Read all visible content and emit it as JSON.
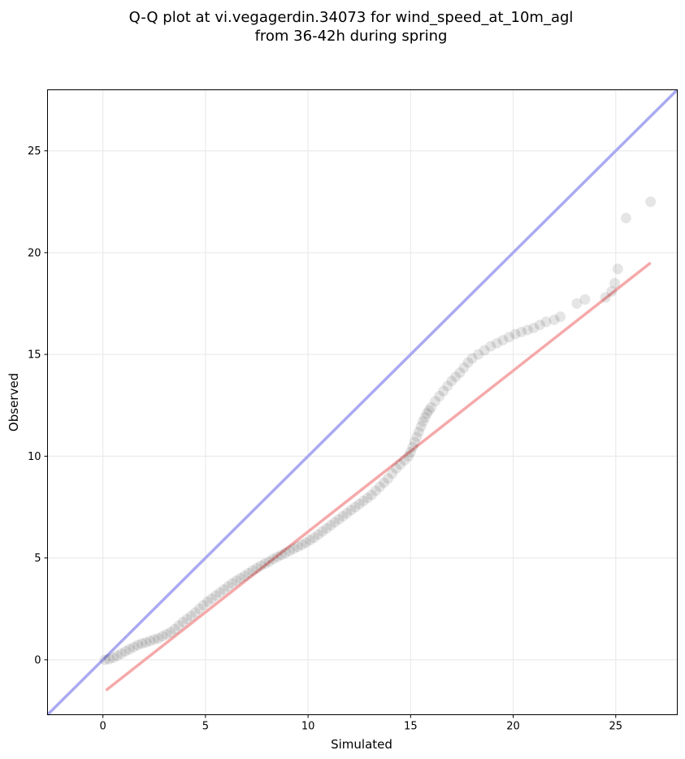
{
  "chart_data": {
    "type": "scatter",
    "title_lines": [
      "Q-Q plot at vi.vegagerdin.34073 for wind_speed_at_10m_agl",
      "from 36-42h during spring"
    ],
    "xlabel": "Simulated",
    "ylabel": "Observed",
    "xlim": [
      -2.7,
      28.0
    ],
    "ylim": [
      -2.7,
      28.0
    ],
    "x_ticks": [
      0,
      5,
      10,
      15,
      20,
      25
    ],
    "y_ticks": [
      0,
      5,
      10,
      15,
      20,
      25
    ],
    "x_tick_labels": [
      "0",
      "5",
      "10",
      "15",
      "20",
      "25"
    ],
    "y_tick_labels": [
      "0",
      "5",
      "10",
      "15",
      "20",
      "25"
    ],
    "grid": true,
    "colors": {
      "points": "#000000",
      "identity_line": "#aaaaf2",
      "fit_line": "#f5a9a9",
      "grid": "#ebebeb"
    },
    "identity_line": {
      "name": "y = x"
    },
    "fit_line": {
      "x": [
        0.15,
        26.7
      ],
      "y": [
        -1.5,
        19.5
      ]
    },
    "points": {
      "x": [
        0.1,
        0.3,
        0.5,
        0.7,
        0.9,
        1.1,
        1.3,
        1.5,
        1.7,
        1.9,
        2.1,
        2.3,
        2.5,
        2.7,
        2.9,
        3.1,
        3.3,
        3.5,
        3.7,
        3.9,
        4.1,
        4.3,
        4.5,
        4.7,
        4.9,
        5.1,
        5.3,
        5.5,
        5.7,
        5.9,
        6.1,
        6.3,
        6.5,
        6.7,
        6.9,
        7.1,
        7.3,
        7.5,
        7.7,
        7.9,
        8.1,
        8.3,
        8.5,
        8.7,
        8.9,
        9.1,
        9.3,
        9.5,
        9.7,
        9.9,
        10.1,
        10.3,
        10.5,
        10.7,
        10.9,
        11.1,
        11.3,
        11.5,
        11.7,
        11.9,
        12.1,
        12.3,
        12.5,
        12.7,
        12.9,
        13.1,
        13.3,
        13.5,
        13.7,
        13.9,
        14.1,
        14.3,
        14.5,
        14.7,
        14.9,
        15.0,
        15.1,
        15.2,
        15.3,
        15.4,
        15.5,
        15.6,
        15.7,
        15.8,
        15.9,
        16.0,
        16.2,
        16.4,
        16.6,
        16.8,
        17.0,
        17.2,
        17.4,
        17.6,
        17.8,
        18.0,
        18.3,
        18.6,
        18.9,
        19.2,
        19.5,
        19.8,
        20.1,
        20.4,
        20.7,
        21.0,
        21.3,
        21.6,
        22.0,
        22.3,
        23.1,
        23.5,
        24.5,
        24.8,
        24.95,
        25.1,
        25.5,
        26.7
      ],
      "y": [
        0.0,
        0.03,
        0.1,
        0.2,
        0.3,
        0.42,
        0.52,
        0.62,
        0.72,
        0.8,
        0.85,
        0.92,
        1.0,
        1.05,
        1.15,
        1.25,
        1.35,
        1.5,
        1.68,
        1.85,
        2.0,
        2.15,
        2.32,
        2.5,
        2.68,
        2.85,
        3.0,
        3.15,
        3.3,
        3.45,
        3.6,
        3.75,
        3.88,
        4.0,
        4.12,
        4.25,
        4.38,
        4.5,
        4.62,
        4.72,
        4.82,
        4.95,
        5.05,
        5.15,
        5.25,
        5.35,
        5.45,
        5.55,
        5.65,
        5.75,
        5.88,
        6.0,
        6.15,
        6.3,
        6.45,
        6.6,
        6.75,
        6.9,
        7.05,
        7.2,
        7.35,
        7.5,
        7.65,
        7.8,
        7.95,
        8.1,
        8.3,
        8.5,
        8.7,
        8.9,
        9.15,
        9.4,
        9.6,
        9.8,
        10.0,
        10.2,
        10.45,
        10.7,
        10.95,
        11.2,
        11.45,
        11.7,
        11.9,
        12.1,
        12.25,
        12.4,
        12.7,
        12.95,
        13.2,
        13.45,
        13.7,
        13.9,
        14.1,
        14.35,
        14.6,
        14.8,
        15.0,
        15.2,
        15.4,
        15.55,
        15.7,
        15.85,
        16.0,
        16.1,
        16.2,
        16.3,
        16.45,
        16.6,
        16.7,
        16.85,
        17.5,
        17.7,
        17.8,
        18.1,
        18.5,
        19.2,
        21.7,
        22.5
      ]
    }
  }
}
